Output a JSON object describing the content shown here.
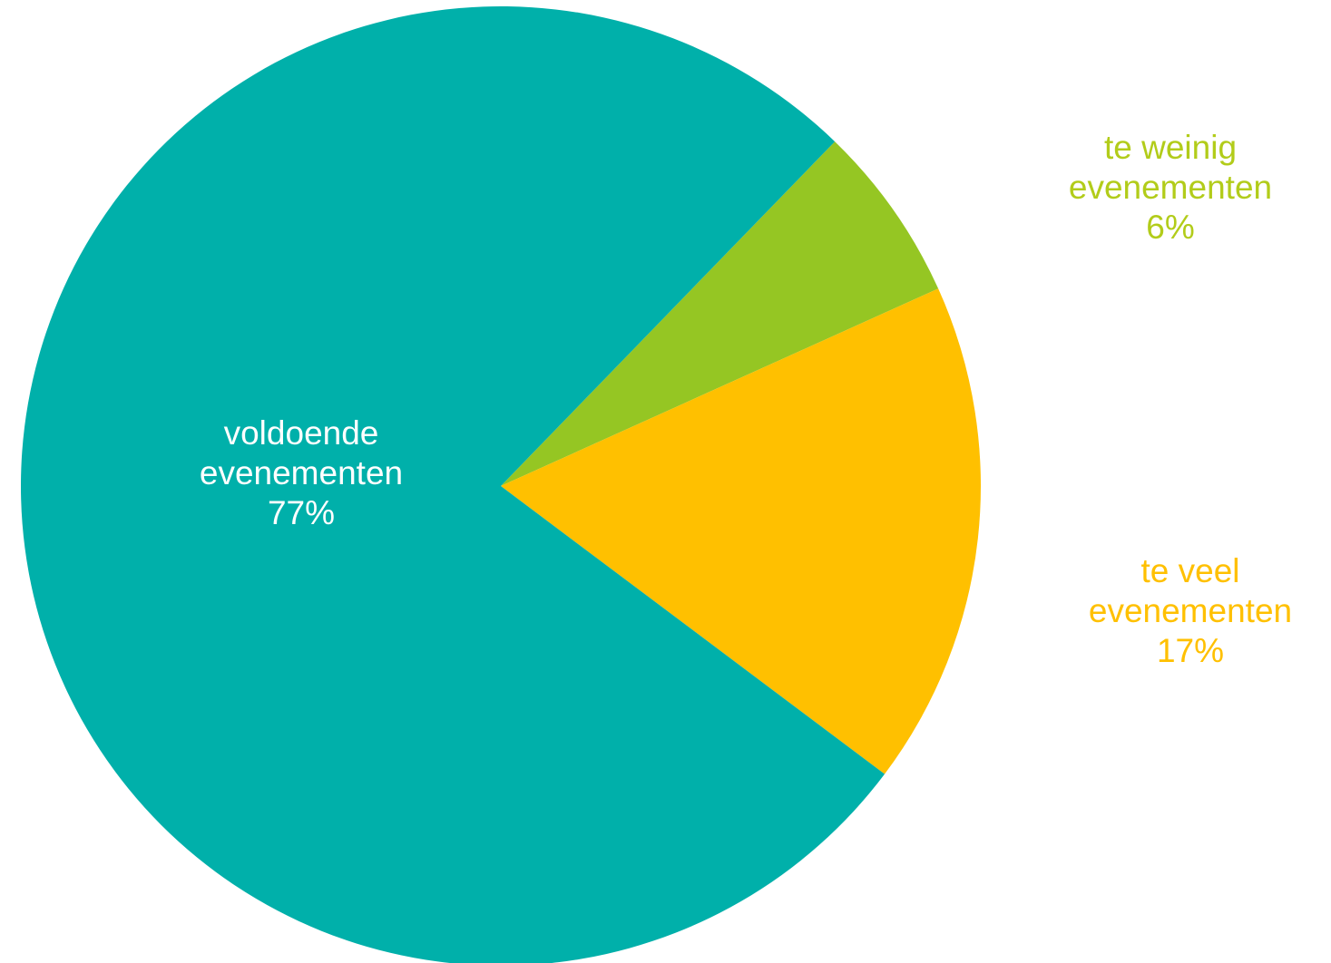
{
  "chart_data": {
    "type": "pie",
    "categories": [
      "te weinig evenementen",
      "te veel evenementen",
      "voldoende evenementen"
    ],
    "values": [
      6,
      17,
      77
    ],
    "value_labels": [
      "6%",
      "17%",
      "77%"
    ],
    "colors": [
      "#95c623",
      "#ffc000",
      "#00b0aa"
    ],
    "label_colors": [
      "#b2cc1a",
      "#ffc000",
      "#ffffff"
    ]
  }
}
